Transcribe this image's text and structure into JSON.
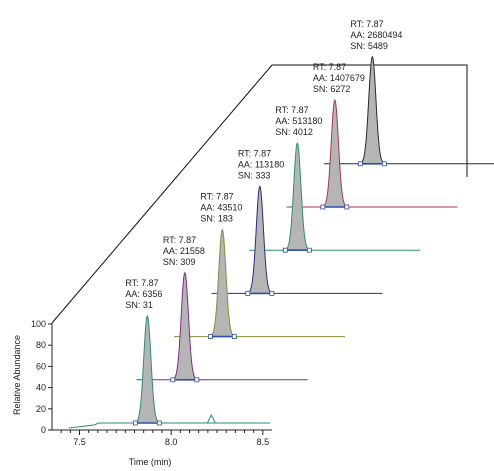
{
  "chart_data": {
    "type": "line",
    "subtype": "stacked-3d-chromatograms",
    "title": "",
    "xlabel": "Time (min)",
    "ylabel": "Relative Abundance",
    "xlim": [
      7.35,
      8.55
    ],
    "ylim": [
      0,
      100
    ],
    "x_ticks": [
      "7.5",
      "8.0",
      "8.5"
    ],
    "y_ticks": [
      "0",
      "20",
      "40",
      "60",
      "80",
      "100"
    ],
    "grid": false,
    "legend": "none",
    "series": [
      {
        "color": "#2e8b7f",
        "rt": 7.87,
        "label": {
          "rt": "RT: 7.87",
          "aa": "AA: 6356",
          "sn": "SN: 31"
        }
      },
      {
        "color": "#7a2f7e",
        "rt": 7.87,
        "label": {
          "rt": "RT: 7.87",
          "aa": "AA: 21558",
          "sn": "SN: 309"
        }
      },
      {
        "color": "#8c8c3c",
        "rt": 7.87,
        "label": {
          "rt": "RT: 7.87",
          "aa": "AA: 43510",
          "sn": "SN: 183"
        }
      },
      {
        "color": "#2a2f7e",
        "rt": 7.87,
        "label": {
          "rt": "RT: 7.87",
          "aa": "AA: 113180",
          "sn": "SN: 333"
        }
      },
      {
        "color": "#2f8f6a",
        "rt": 7.87,
        "label": {
          "rt": "RT: 7.87",
          "aa": "AA: 513180",
          "sn": "SN: 4012"
        }
      },
      {
        "color": "#a33a4a",
        "rt": 7.87,
        "label": {
          "rt": "RT: 7.87",
          "aa": "AA: 1407679",
          "sn": "SN: 6272"
        }
      },
      {
        "color": "#2a2a2a",
        "rt": 7.87,
        "label": {
          "rt": "RT: 7.87",
          "aa": "AA: 2680494",
          "sn": "SN: 5489"
        }
      }
    ],
    "colors": {
      "peak_fill": "#b5b5b5",
      "baseline_marker": "#2e4fa8",
      "axis": "#222222"
    }
  }
}
